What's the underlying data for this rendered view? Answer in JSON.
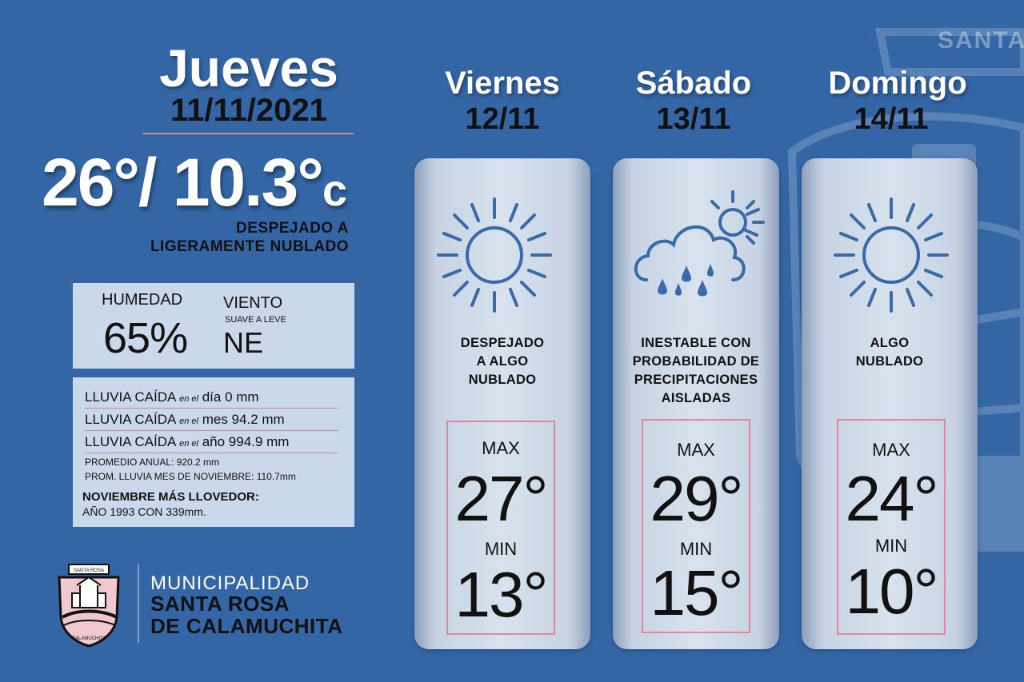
{
  "today": {
    "day": "Jueves",
    "date": "11/11/2021",
    "temp_max": "26°",
    "temp_sep": "/ ",
    "temp_min": "10.3°",
    "temp_unit": "c",
    "desc_line1": "DESPEJADO A",
    "desc_line2": "LIGERAMENTE NUBLADO"
  },
  "humidity": {
    "label": "HUMEDAD",
    "value": "65%"
  },
  "wind": {
    "label": "VIENTO",
    "sub": "SUAVE A LEVE",
    "value": "NE"
  },
  "rain": {
    "rows": [
      {
        "label": "LLUVIA CAÍDA",
        "en": "en el",
        "text": "día 0 mm"
      },
      {
        "label": "LLUVIA CAÍDA",
        "en": "en el",
        "text": "mes 94.2 mm"
      },
      {
        "label": "LLUVIA CAÍDA",
        "en": "en el",
        "text": "año 994.9 mm"
      }
    ],
    "avg_annual": "PROMEDIO ANUAL: 920.2 mm",
    "avg_month": "PROM. LLUVIA MES DE NOVIEMBRE: 110.7mm",
    "record_title": "NOVIEMBRE MÁS LLOVEDOR:",
    "record_text": "AÑO 1993 CON 339mm."
  },
  "logo": {
    "badge_top": "SANTA ROSA",
    "badge_bottom": "CALAMUCHITA",
    "muni": "MUNICIPALIDAD",
    "name1": "SANTA ROSA",
    "name2": "DE CALAMUCHITA"
  },
  "background_text": "SANTA",
  "forecast": [
    {
      "day": "Viernes",
      "date": "12/11",
      "icon": "sun-icon",
      "desc": [
        "DESPEJADO",
        "A ALGO",
        "NUBLADO"
      ],
      "max_label": "MAX",
      "max": "27°",
      "min_label": "MIN",
      "min": "13°"
    },
    {
      "day": "Sábado",
      "date": "13/11",
      "icon": "cloud-rain-sun-icon",
      "desc": [
        "INESTABLE CON",
        "PROBABILIDAD DE",
        "PRECIPITACIONES",
        "AISLADAS"
      ],
      "max_label": "MAX",
      "max": "29°",
      "min_label": "MIN",
      "min": "15°"
    },
    {
      "day": "Domingo",
      "date": "14/11",
      "icon": "sun-icon",
      "desc": [
        "ALGO",
        "NUBLADO"
      ],
      "max_label": "MAX",
      "max": "24°",
      "min_label": "MIN",
      "min": "10°"
    }
  ],
  "colors": {
    "background": "#3466a6",
    "panel": "#c9d8ea",
    "accent_line": "#d98a9e",
    "icon_stroke": "#3a6aa8"
  }
}
